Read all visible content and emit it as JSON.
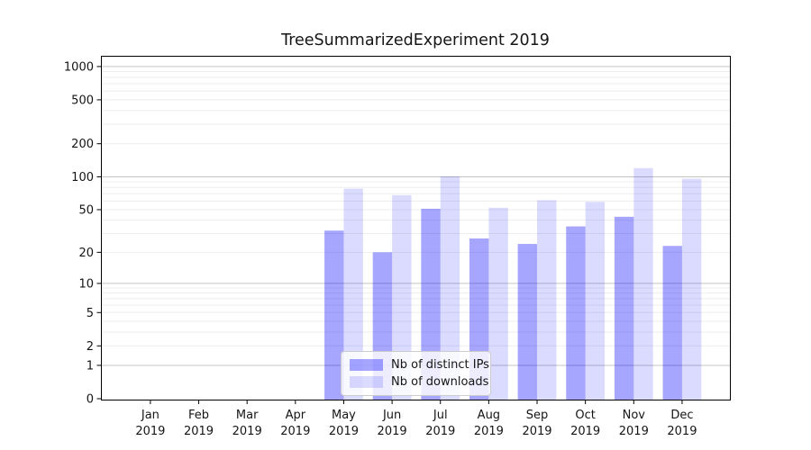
{
  "title": "TreeSummarizedExperiment 2019",
  "chart_data": {
    "type": "bar",
    "title": "TreeSummarizedExperiment 2019",
    "x_categories": [
      "Jan",
      "Feb",
      "Mar",
      "Apr",
      "May",
      "Jun",
      "Jul",
      "Aug",
      "Sep",
      "Oct",
      "Nov",
      "Dec"
    ],
    "x_year_label": "2019",
    "series": [
      {
        "name": "Nb of distinct IPs",
        "color": "rgba(0,0,255,0.35)",
        "values": [
          0,
          0,
          0,
          0,
          32,
          20,
          51,
          27,
          24,
          35,
          43,
          23
        ]
      },
      {
        "name": "Nb of downloads",
        "color": "rgba(0,0,255,0.14)",
        "values": [
          0,
          0,
          0,
          0,
          78,
          68,
          101,
          52,
          61,
          59,
          120,
          96
        ]
      }
    ],
    "y_scale": "log1p",
    "y_ticks": [
      0,
      1,
      2,
      5,
      10,
      20,
      50,
      100,
      200,
      500,
      1000
    ],
    "ylim": [
      0,
      1240
    ],
    "grid": "horizontal major+minor",
    "legend_position": "inside lower center",
    "colors": {
      "major_grid": "#c4c4c4",
      "minor_grid": "#ededed",
      "spine": "#000000",
      "text": "#151515"
    }
  }
}
